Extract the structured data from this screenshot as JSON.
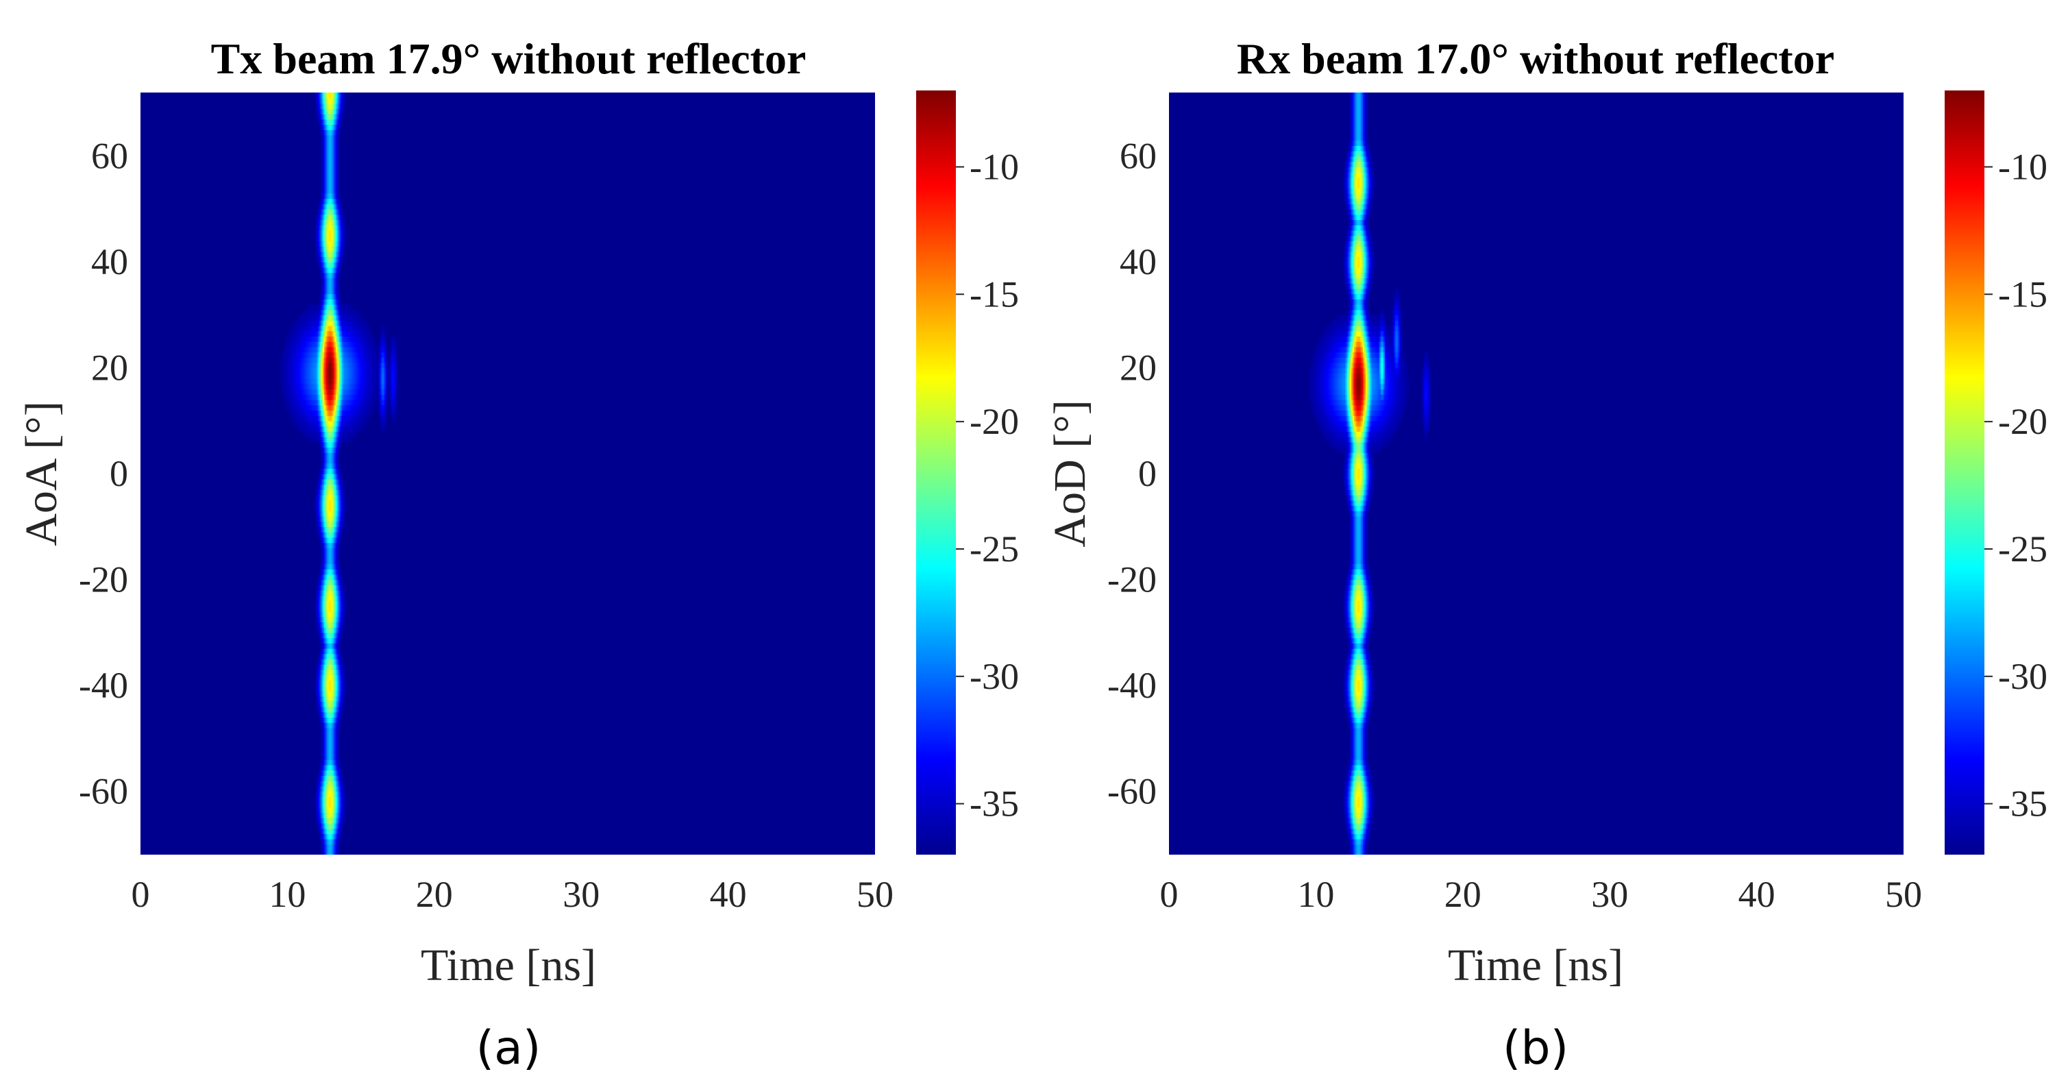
{
  "chart_data": [
    {
      "type": "heatmap",
      "panel": "(a)",
      "title": "Tx beam 17.9° without reflector",
      "xlabel": "Time [ns]",
      "ylabel": "AoA [°]",
      "xlim": [
        0,
        50
      ],
      "ylim": [
        -72,
        72
      ],
      "xticks": [
        0,
        10,
        20,
        30,
        40,
        50
      ],
      "yticks": [
        60,
        40,
        20,
        0,
        -20,
        -40,
        -60
      ],
      "colorbar": {
        "range": [
          -37,
          -7
        ],
        "ticks": [
          -10,
          -15,
          -20,
          -25,
          -30,
          -35
        ]
      },
      "colormap": "jet",
      "features": {
        "delay_ns": 12.9,
        "peak_angle_deg": 19,
        "peak_level_db": -7.5,
        "lobe_angles_deg": [
          72,
          45,
          19,
          -6,
          -25,
          -40,
          -62
        ],
        "side_components": [
          {
            "delay_ns": 16.5,
            "angle_deg": 18,
            "level_db": -30
          },
          {
            "delay_ns": 17.2,
            "angle_deg": 18,
            "level_db": -33
          }
        ]
      }
    },
    {
      "type": "heatmap",
      "panel": "(b)",
      "title": "Rx beam 17.0° without reflector",
      "xlabel": "Time [ns]",
      "ylabel": "AoD [°]",
      "xlim": [
        0,
        50
      ],
      "ylim": [
        -72,
        72
      ],
      "xticks": [
        0,
        10,
        20,
        30,
        40,
        50
      ],
      "yticks": [
        60,
        40,
        20,
        0,
        -20,
        -40,
        -60
      ],
      "colorbar": {
        "range": [
          -37,
          -7
        ],
        "ticks": [
          -10,
          -15,
          -20,
          -25,
          -30,
          -35
        ]
      },
      "colormap": "jet",
      "features": {
        "delay_ns": 12.9,
        "peak_angle_deg": 17,
        "peak_level_db": -7.2,
        "lobe_angles_deg": [
          55,
          40,
          17,
          0,
          -25,
          -40,
          -62
        ],
        "side_components": [
          {
            "delay_ns": 14.5,
            "angle_deg": 20,
            "level_db": -25
          },
          {
            "delay_ns": 15.5,
            "angle_deg": 25,
            "level_db": -30
          },
          {
            "delay_ns": 17.5,
            "angle_deg": 15,
            "level_db": -33
          }
        ]
      }
    }
  ]
}
